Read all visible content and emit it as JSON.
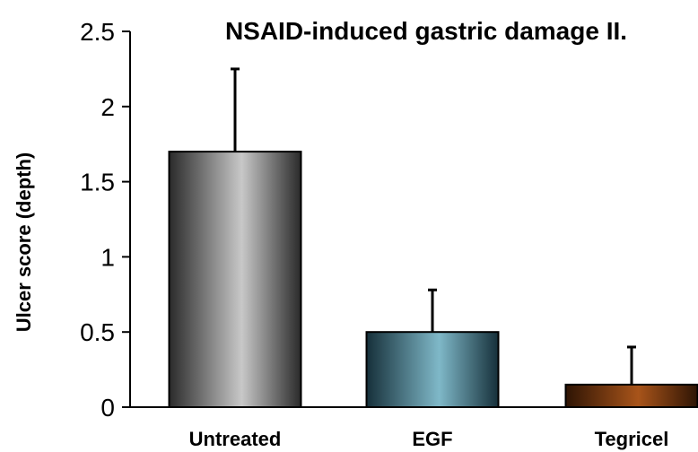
{
  "chart_data": {
    "type": "bar",
    "title": "NSAID-induced gastric damage II.",
    "xlabel": "",
    "ylabel": "Ulcer score (depth)",
    "categories": [
      "Untreated",
      "EGF",
      "Tegricel"
    ],
    "values": [
      1.7,
      0.5,
      0.15
    ],
    "error_upper": [
      0.55,
      0.28,
      0.25
    ],
    "ylim": [
      0,
      2.5
    ],
    "yticks": [
      "0",
      "0.5",
      "1",
      "1.5",
      "2",
      "2.5"
    ],
    "yticks_values": [
      0,
      0.5,
      1,
      1.5,
      2,
      2.5
    ],
    "grid": false,
    "bar_colors": [
      {
        "edge": "#2a2a2a",
        "center": "#c8c8c8"
      },
      {
        "edge": "#16303a",
        "center": "#7fb8c8"
      },
      {
        "edge": "#2e1404",
        "center": "#a8541a"
      }
    ]
  }
}
